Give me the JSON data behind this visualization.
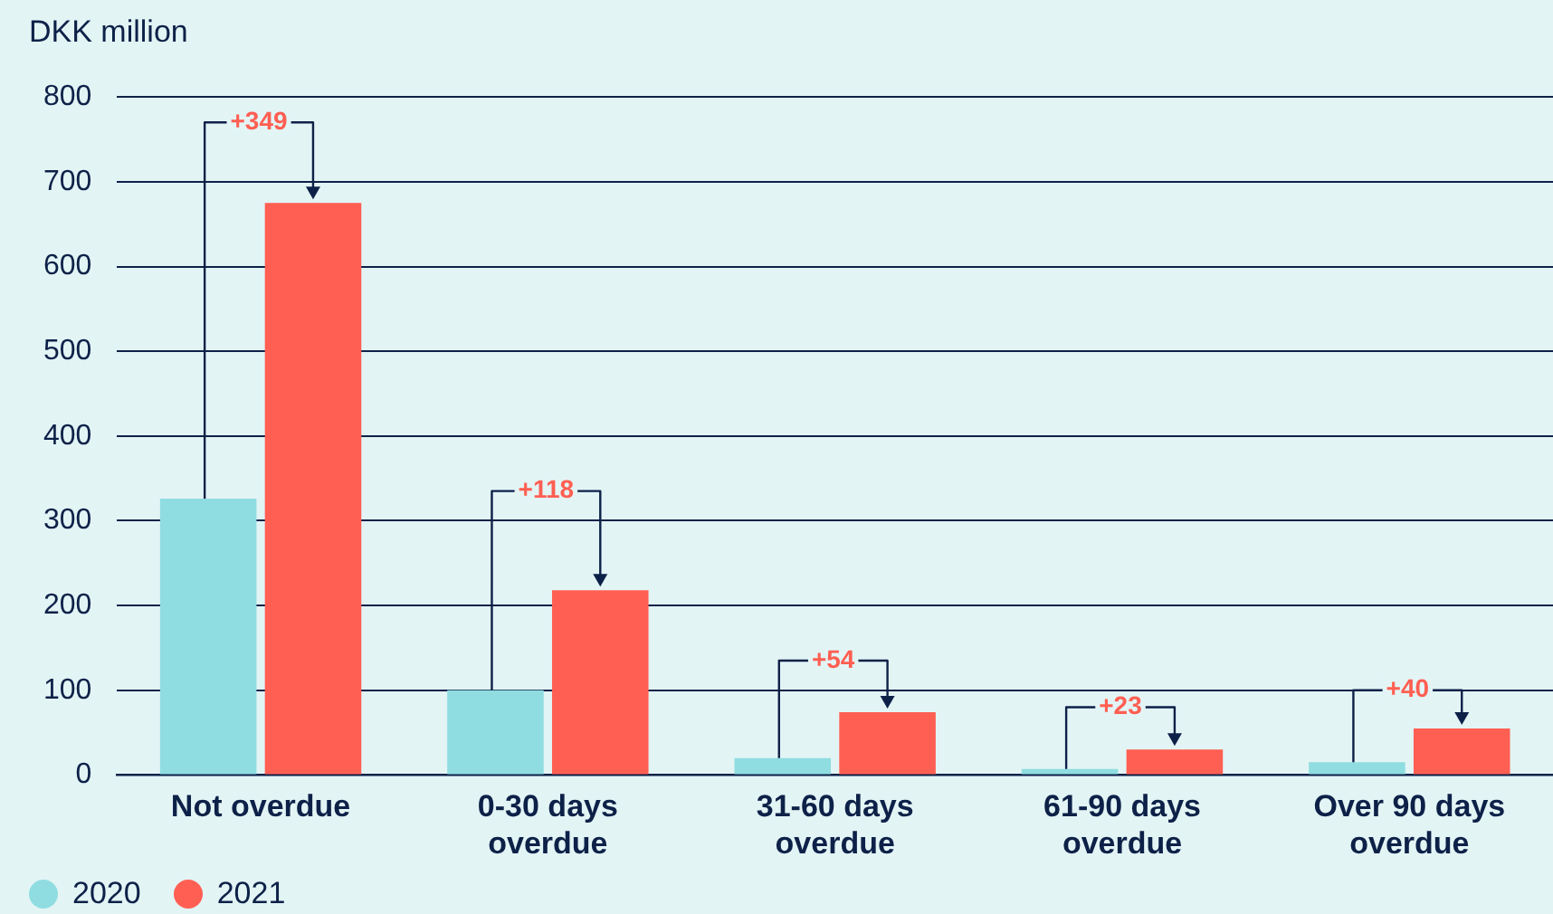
{
  "chart_data": {
    "type": "bar",
    "ylabel": "DKK million",
    "categories": [
      "Not overdue",
      "0-30 days overdue",
      "31-60 days overdue",
      "61-90 days overdue",
      "Over 90 days overdue"
    ],
    "series": [
      {
        "name": "2020",
        "color": "#8fdde0",
        "values": [
          326,
          100,
          20,
          7,
          15
        ]
      },
      {
        "name": "2021",
        "color": "#ff5f52",
        "values": [
          675,
          218,
          74,
          30,
          55
        ]
      }
    ],
    "ylim": [
      0,
      800
    ],
    "yticks": [
      0,
      100,
      200,
      300,
      400,
      500,
      600,
      700,
      800
    ],
    "grid": "y",
    "legend": "bottom left",
    "annotations": [
      {
        "text": "+349",
        "x": "Not overdue",
        "y": 770
      },
      {
        "text": "+118",
        "x": "0-30 days overdue",
        "y": 335
      },
      {
        "text": "+54",
        "x": "31-60 days overdue",
        "y": 135
      },
      {
        "text": "+23",
        "x": "61-90 days overdue",
        "y": 80
      },
      {
        "text": "+40",
        "x": "Over 90 days overdue",
        "y": 100
      }
    ]
  }
}
